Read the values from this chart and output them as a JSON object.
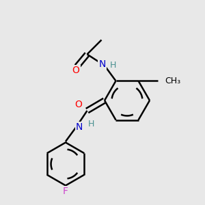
{
  "bg_color": "#e8e8e8",
  "bond_color": "#000000",
  "atom_colors": {
    "O": "#ff0000",
    "N": "#0000cc",
    "F": "#cc44cc",
    "H": "#4a9090",
    "C": "#000000"
  },
  "bond_width": 1.8,
  "figsize": [
    3.0,
    3.0
  ],
  "dpi": 100,
  "xlim": [
    0,
    10
  ],
  "ylim": [
    0,
    10
  ],
  "font_size_atom": 10,
  "font_size_small": 9
}
